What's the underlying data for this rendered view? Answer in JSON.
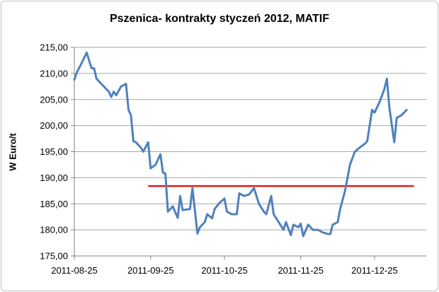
{
  "chart_data": {
    "type": "line",
    "title": "Pszenica- kontrakty styczeń 2012, MATIF",
    "xlabel": "",
    "ylabel": "W Euro/t",
    "ylim": [
      175,
      215
    ],
    "yticks": [
      "175,00",
      "180,00",
      "185,00",
      "190,00",
      "195,00",
      "200,00",
      "205,00",
      "210,00",
      "215,00"
    ],
    "xlim": [
      "2011-08-25",
      "2012-01-15"
    ],
    "xticks": [
      "2011-08-25",
      "2011-09-25",
      "2011-10-25",
      "2011-11-25",
      "2011-12-25"
    ],
    "grid": "horizontal",
    "colors": {
      "line": "#4f81bd",
      "reference": "#e01a1a",
      "grid": "#a6a6a6"
    },
    "series": [
      {
        "values": [
          [
            "2011-08-25",
            208.8
          ],
          [
            "2011-08-26",
            210.2
          ],
          [
            "2011-08-28",
            212.0
          ],
          [
            "2011-08-30",
            214.0
          ],
          [
            "2011-09-01",
            211.0
          ],
          [
            "2011-09-02",
            211.0
          ],
          [
            "2011-09-03",
            209.0
          ],
          [
            "2011-09-06",
            207.5
          ],
          [
            "2011-09-08",
            206.5
          ],
          [
            "2011-09-09",
            205.5
          ],
          [
            "2011-09-10",
            206.5
          ],
          [
            "2011-09-11",
            205.8
          ],
          [
            "2011-09-13",
            207.5
          ],
          [
            "2011-09-15",
            208.0
          ],
          [
            "2011-09-16",
            203.0
          ],
          [
            "2011-09-17",
            202.0
          ],
          [
            "2011-09-18",
            197.0
          ],
          [
            "2011-09-19",
            196.8
          ],
          [
            "2011-09-21",
            195.8
          ],
          [
            "2011-09-22",
            195.0
          ],
          [
            "2011-09-24",
            196.8
          ],
          [
            "2011-09-25",
            191.8
          ],
          [
            "2011-09-27",
            192.5
          ],
          [
            "2011-09-29",
            194.5
          ],
          [
            "2011-09-30",
            191.0
          ],
          [
            "2011-10-01",
            190.8
          ],
          [
            "2011-10-02",
            183.5
          ],
          [
            "2011-10-04",
            184.5
          ],
          [
            "2011-10-06",
            182.3
          ],
          [
            "2011-10-07",
            186.5
          ],
          [
            "2011-10-08",
            183.8
          ],
          [
            "2011-10-11",
            184.0
          ],
          [
            "2011-10-12",
            188.0
          ],
          [
            "2011-10-14",
            179.3
          ],
          [
            "2011-10-15",
            180.5
          ],
          [
            "2011-10-17",
            181.5
          ],
          [
            "2011-10-18",
            183.0
          ],
          [
            "2011-10-20",
            182.2
          ],
          [
            "2011-10-21",
            184.0
          ],
          [
            "2011-10-23",
            185.2
          ],
          [
            "2011-10-25",
            186.0
          ],
          [
            "2011-10-26",
            183.5
          ],
          [
            "2011-10-28",
            183.0
          ],
          [
            "2011-10-30",
            183.0
          ],
          [
            "2011-10-31",
            187.0
          ],
          [
            "2011-11-02",
            186.5
          ],
          [
            "2011-11-04",
            186.8
          ],
          [
            "2011-11-06",
            188.0
          ],
          [
            "2011-11-08",
            185.0
          ],
          [
            "2011-11-10",
            183.5
          ],
          [
            "2011-11-11",
            183.0
          ],
          [
            "2011-11-13",
            186.5
          ],
          [
            "2011-11-14",
            183.0
          ],
          [
            "2011-11-16",
            181.5
          ],
          [
            "2011-11-18",
            180.0
          ],
          [
            "2011-11-19",
            181.5
          ],
          [
            "2011-11-21",
            179.0
          ],
          [
            "2011-11-22",
            181.0
          ],
          [
            "2011-11-24",
            180.5
          ],
          [
            "2011-11-25",
            181.2
          ],
          [
            "2011-11-26",
            178.8
          ],
          [
            "2011-11-28",
            181.0
          ],
          [
            "2011-11-30",
            180.0
          ],
          [
            "2011-12-02",
            180.0
          ],
          [
            "2011-12-04",
            179.5
          ],
          [
            "2011-12-06",
            179.2
          ],
          [
            "2011-12-07",
            179.2
          ],
          [
            "2011-12-08",
            181.0
          ],
          [
            "2011-12-10",
            181.5
          ],
          [
            "2011-12-11",
            184.0
          ],
          [
            "2011-12-13",
            187.5
          ],
          [
            "2011-12-15",
            192.5
          ],
          [
            "2011-12-17",
            195.0
          ],
          [
            "2011-12-19",
            195.8
          ],
          [
            "2011-12-21",
            196.5
          ],
          [
            "2011-12-22",
            197.0
          ],
          [
            "2011-12-24",
            203.0
          ],
          [
            "2011-12-25",
            202.5
          ],
          [
            "2011-12-27",
            204.5
          ],
          [
            "2011-12-29",
            207.0
          ],
          [
            "2011-12-30",
            209.0
          ],
          [
            "2011-12-31",
            203.5
          ],
          [
            "2012-01-02",
            196.8
          ],
          [
            "2012-01-03",
            201.5
          ],
          [
            "2012-01-05",
            202.0
          ],
          [
            "2012-01-07",
            203.0
          ]
        ]
      }
    ],
    "reference_line": {
      "y": 188.4,
      "x_start": "2011-09-24",
      "x_end": "2012-01-10"
    }
  }
}
